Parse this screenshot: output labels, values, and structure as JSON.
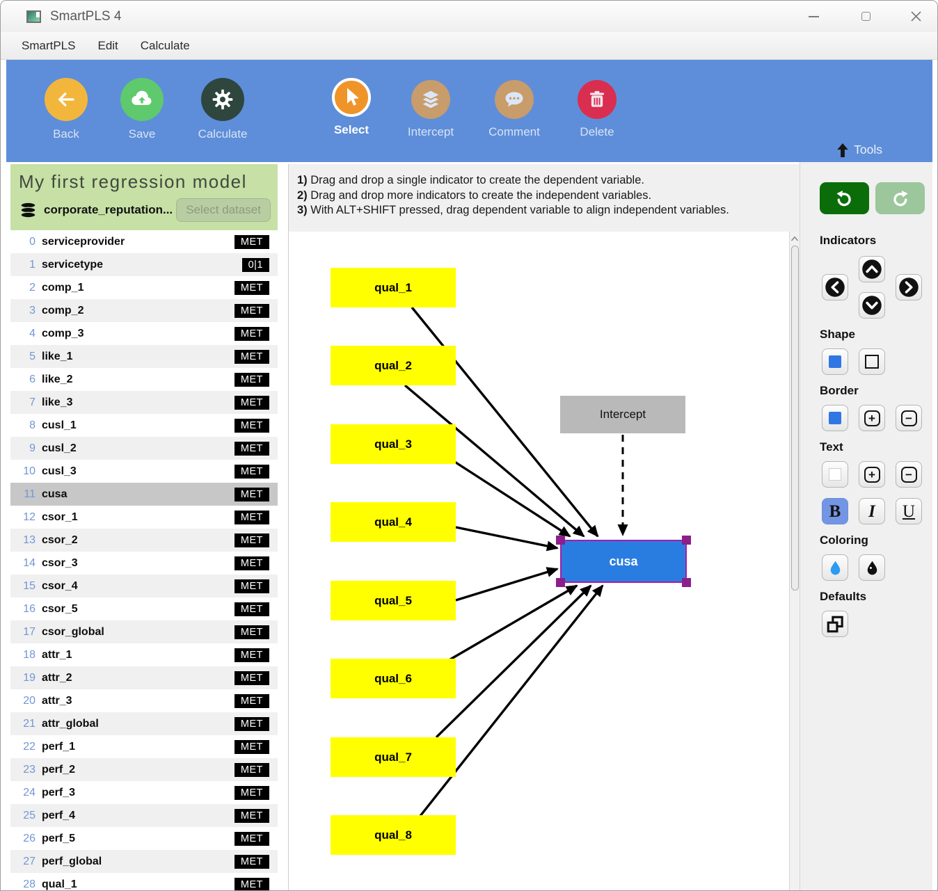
{
  "window": {
    "title": "SmartPLS 4"
  },
  "menu": {
    "items": [
      "SmartPLS",
      "Edit",
      "Calculate"
    ]
  },
  "toolbar": {
    "buttons": [
      {
        "label": "Back",
        "icon": "back-arrow-icon",
        "color": "#f2b63d"
      },
      {
        "label": "Save",
        "icon": "cloud-upload-icon",
        "color": "#5fc96d"
      },
      {
        "label": "Calculate",
        "icon": "gear-icon",
        "color": "#2e463e"
      },
      {
        "label": "Select",
        "icon": "cursor-icon",
        "color": "#ef9428",
        "active": true
      },
      {
        "label": "Intercept",
        "icon": "layers-icon",
        "color": "#c89c6b"
      },
      {
        "label": "Comment",
        "icon": "comment-bubble-icon",
        "color": "#c89c6b"
      },
      {
        "label": "Delete",
        "icon": "trash-icon",
        "color": "#d92e4f"
      }
    ],
    "tools_label": "Tools"
  },
  "sidebar": {
    "model_title": "My first regression model",
    "dataset_name": "corporate_reputation...",
    "select_dataset_label": "Select dataset",
    "selected_index": 11,
    "indicators": [
      {
        "n": 0,
        "name": "serviceprovider",
        "badge": "MET"
      },
      {
        "n": 1,
        "name": "servicetype",
        "badge": "0|1"
      },
      {
        "n": 2,
        "name": "comp_1",
        "badge": "MET"
      },
      {
        "n": 3,
        "name": "comp_2",
        "badge": "MET"
      },
      {
        "n": 4,
        "name": "comp_3",
        "badge": "MET"
      },
      {
        "n": 5,
        "name": "like_1",
        "badge": "MET"
      },
      {
        "n": 6,
        "name": "like_2",
        "badge": "MET"
      },
      {
        "n": 7,
        "name": "like_3",
        "badge": "MET"
      },
      {
        "n": 8,
        "name": "cusl_1",
        "badge": "MET"
      },
      {
        "n": 9,
        "name": "cusl_2",
        "badge": "MET"
      },
      {
        "n": 10,
        "name": "cusl_3",
        "badge": "MET"
      },
      {
        "n": 11,
        "name": "cusa",
        "badge": "MET"
      },
      {
        "n": 12,
        "name": "csor_1",
        "badge": "MET"
      },
      {
        "n": 13,
        "name": "csor_2",
        "badge": "MET"
      },
      {
        "n": 14,
        "name": "csor_3",
        "badge": "MET"
      },
      {
        "n": 15,
        "name": "csor_4",
        "badge": "MET"
      },
      {
        "n": 16,
        "name": "csor_5",
        "badge": "MET"
      },
      {
        "n": 17,
        "name": "csor_global",
        "badge": "MET"
      },
      {
        "n": 18,
        "name": "attr_1",
        "badge": "MET"
      },
      {
        "n": 19,
        "name": "attr_2",
        "badge": "MET"
      },
      {
        "n": 20,
        "name": "attr_3",
        "badge": "MET"
      },
      {
        "n": 21,
        "name": "attr_global",
        "badge": "MET"
      },
      {
        "n": 22,
        "name": "perf_1",
        "badge": "MET"
      },
      {
        "n": 23,
        "name": "perf_2",
        "badge": "MET"
      },
      {
        "n": 24,
        "name": "perf_3",
        "badge": "MET"
      },
      {
        "n": 25,
        "name": "perf_4",
        "badge": "MET"
      },
      {
        "n": 26,
        "name": "perf_5",
        "badge": "MET"
      },
      {
        "n": 27,
        "name": "perf_global",
        "badge": "MET"
      },
      {
        "n": 28,
        "name": "qual_1",
        "badge": "MET"
      }
    ]
  },
  "canvas": {
    "instructions": [
      {
        "num": "1)",
        "text": " Drag and drop a single indicator to create the dependent variable."
      },
      {
        "num": "2)",
        "text": " Drag and drop more indicators to create the independent variables."
      },
      {
        "num": "3)",
        "text": " With ALT+SHIFT pressed, drag dependent variable to align independent variables."
      }
    ],
    "indicator_nodes": [
      "qual_1",
      "qual_2",
      "qual_3",
      "qual_4",
      "qual_5",
      "qual_6",
      "qual_7",
      "qual_8"
    ],
    "intercept_label": "Intercept",
    "dependent_label": "cusa"
  },
  "right_panel": {
    "headings": {
      "indicators": "Indicators",
      "shape": "Shape",
      "border": "Border",
      "text": "Text",
      "coloring": "Coloring",
      "defaults": "Defaults"
    },
    "glyphs": {
      "plus": "+",
      "minus": "−",
      "bold": "B",
      "italic": "I",
      "underline": "U"
    }
  },
  "colors": {
    "toolbar_blue": "#5e8ed9",
    "sidebar_green": "#c6e0a5",
    "node_yellow": "#ffff00",
    "node_blue": "#2a7de0",
    "node_gray": "#b9b9b9",
    "selection_purple": "#8b1f8b",
    "undo_green": "#0a6d0a",
    "redo_green": "#9cc69c",
    "accent_square_blue": "#3077e3",
    "droplet_blue": "#2e9bf0"
  }
}
